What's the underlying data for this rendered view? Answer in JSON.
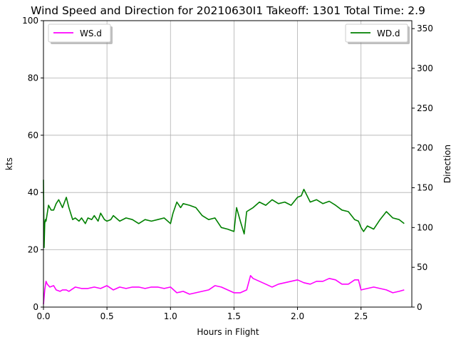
{
  "chart_data": {
    "type": "line",
    "title": "Wind Speed and Direction for 20210630I1 Takeoff: 1301 Total Time: 2.9",
    "xlabel": "Hours in Flight",
    "ylabel": "kts",
    "y2label": "Direction",
    "xlim": [
      0,
      2.9
    ],
    "ylim": [
      0,
      100
    ],
    "y2lim": [
      0,
      360
    ],
    "xticks": [
      0.0,
      0.5,
      1.0,
      1.5,
      2.0,
      2.5
    ],
    "xtick_labels": [
      "0.0",
      "0.5",
      "1.0",
      "1.5",
      "2.0",
      "2.5"
    ],
    "yticks": [
      0,
      20,
      40,
      60,
      80,
      100
    ],
    "ytick_labels": [
      "0",
      "20",
      "40",
      "60",
      "80",
      "100"
    ],
    "y2ticks": [
      0,
      50,
      100,
      150,
      200,
      250,
      300,
      350
    ],
    "y2tick_labels": [
      "0",
      "50",
      "100",
      "150",
      "200",
      "250",
      "300",
      "350"
    ],
    "grid": true,
    "series": [
      {
        "name": "WS.d",
        "axis": "left",
        "color": "#ff00ff",
        "legend_position": "top-left",
        "x": [
          0.0,
          0.01,
          0.02,
          0.03,
          0.05,
          0.08,
          0.1,
          0.13,
          0.15,
          0.18,
          0.2,
          0.25,
          0.3,
          0.35,
          0.4,
          0.45,
          0.5,
          0.55,
          0.6,
          0.65,
          0.7,
          0.75,
          0.8,
          0.85,
          0.9,
          0.95,
          1.0,
          1.05,
          1.1,
          1.15,
          1.2,
          1.25,
          1.3,
          1.35,
          1.4,
          1.45,
          1.5,
          1.55,
          1.6,
          1.63,
          1.65,
          1.7,
          1.75,
          1.8,
          1.85,
          1.9,
          1.95,
          2.0,
          2.05,
          2.1,
          2.15,
          2.2,
          2.25,
          2.3,
          2.35,
          2.4,
          2.45,
          2.48,
          2.5,
          2.55,
          2.6,
          2.65,
          2.7,
          2.75,
          2.8,
          2.84
        ],
        "y": [
          1,
          6,
          9,
          8,
          7,
          7.5,
          6,
          5.5,
          6,
          6,
          5.5,
          7,
          6.5,
          6.5,
          7,
          6.5,
          7.5,
          6,
          7,
          6.5,
          7,
          7,
          6.5,
          7,
          7,
          6.5,
          7,
          5,
          5.5,
          4.5,
          5,
          5.5,
          6,
          7.5,
          7,
          6,
          5,
          5,
          6,
          11,
          10,
          9,
          8,
          7,
          8,
          8.5,
          9,
          9.5,
          8.5,
          8,
          9,
          9,
          10,
          9.5,
          8,
          8,
          9.5,
          9.5,
          6,
          6.5,
          7,
          6.5,
          6,
          5,
          5.5,
          6
        ]
      },
      {
        "name": "WD.d",
        "axis": "right",
        "color": "#008000",
        "legend_position": "top-right",
        "x": [
          0.0,
          0.005,
          0.01,
          0.015,
          0.02,
          0.04,
          0.06,
          0.08,
          0.1,
          0.12,
          0.15,
          0.18,
          0.2,
          0.23,
          0.25,
          0.28,
          0.3,
          0.33,
          0.35,
          0.38,
          0.4,
          0.43,
          0.45,
          0.48,
          0.5,
          0.53,
          0.55,
          0.6,
          0.65,
          0.7,
          0.75,
          0.8,
          0.85,
          0.9,
          0.95,
          1.0,
          1.02,
          1.05,
          1.08,
          1.1,
          1.15,
          1.2,
          1.25,
          1.3,
          1.35,
          1.4,
          1.45,
          1.5,
          1.52,
          1.55,
          1.58,
          1.6,
          1.65,
          1.7,
          1.75,
          1.8,
          1.85,
          1.9,
          1.95,
          2.0,
          2.03,
          2.05,
          2.1,
          2.15,
          2.2,
          2.25,
          2.3,
          2.35,
          2.4,
          2.45,
          2.48,
          2.5,
          2.52,
          2.55,
          2.6,
          2.65,
          2.7,
          2.75,
          2.8,
          2.84
        ],
        "y": [
          160,
          75,
          105,
          110,
          108,
          128,
          122,
          122,
          130,
          135,
          125,
          138,
          125,
          110,
          112,
          108,
          112,
          105,
          112,
          110,
          115,
          108,
          118,
          110,
          108,
          110,
          115,
          108,
          112,
          110,
          105,
          110,
          108,
          110,
          112,
          105,
          118,
          132,
          125,
          130,
          128,
          125,
          115,
          110,
          112,
          100,
          98,
          95,
          125,
          108,
          92,
          120,
          125,
          132,
          128,
          135,
          130,
          132,
          128,
          138,
          140,
          148,
          132,
          135,
          130,
          133,
          128,
          122,
          120,
          110,
          108,
          100,
          95,
          102,
          98,
          110,
          120,
          112,
          110,
          105
        ]
      }
    ]
  }
}
